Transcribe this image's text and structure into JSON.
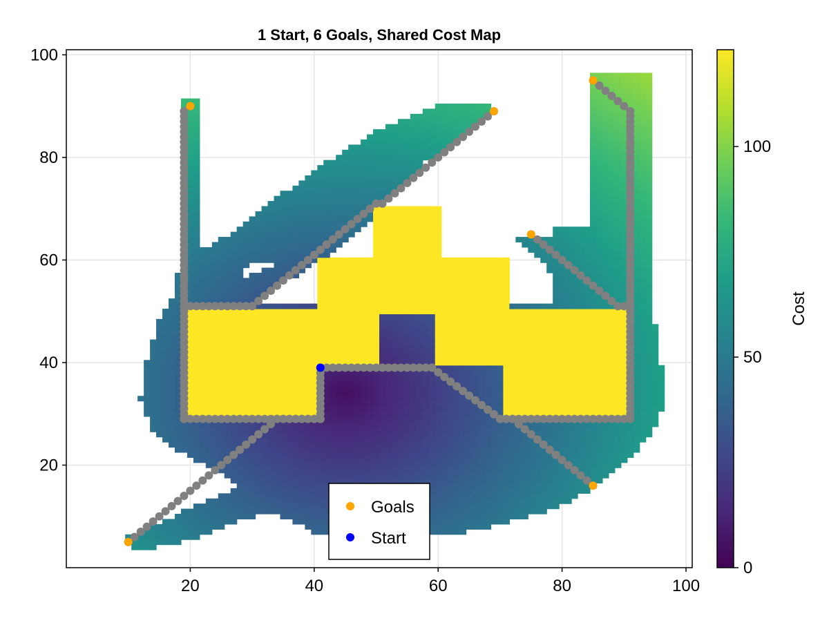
{
  "chart_data": {
    "type": "heatmap",
    "title": "1 Start, 6 Goals, Shared Cost Map",
    "xlabel": "",
    "ylabel": "",
    "xlim": [
      0,
      101
    ],
    "ylim": [
      0,
      101
    ],
    "x_ticks": [
      20,
      40,
      60,
      80,
      100
    ],
    "y_ticks": [
      20,
      40,
      60,
      80,
      100
    ],
    "x_tick_labels": [
      "20",
      "40",
      "60",
      "80",
      "100"
    ],
    "y_tick_labels": [
      "20",
      "40",
      "60",
      "80",
      "100"
    ],
    "grid": true,
    "colorbar": {
      "label": "Cost",
      "range": [
        0,
        123
      ],
      "ticks": [
        0,
        50,
        100
      ],
      "tick_labels": [
        "0",
        "50",
        "100"
      ],
      "colormap": "viridis"
    },
    "cost_field": {
      "obstacle_color": "#fde725",
      "notes_colormap_stops": [
        "#440154",
        "#482878",
        "#3e4989",
        "#31688e",
        "#26828e",
        "#1f9e89",
        "#35b779",
        "#6ece58",
        "#b5de2b",
        "#fde725"
      ]
    },
    "start": {
      "name": "Start",
      "x": 41,
      "y": 39,
      "color": "#0000ff"
    },
    "goals": {
      "name": "Goals",
      "color": "#ffa500",
      "points": [
        [
          10,
          5
        ],
        [
          20,
          90
        ],
        [
          69,
          89
        ],
        [
          85,
          95
        ],
        [
          75,
          65
        ],
        [
          85,
          16
        ]
      ]
    },
    "paths": {
      "color": "#808080",
      "polylines": [
        [
          [
            41,
            39
          ],
          [
            41,
            29
          ],
          [
            34,
            29
          ],
          [
            10,
            5
          ]
        ],
        [
          [
            41,
            29
          ],
          [
            19,
            29
          ],
          [
            19,
            89
          ],
          [
            20,
            90
          ]
        ],
        [
          [
            19,
            51
          ],
          [
            30,
            51
          ],
          [
            50,
            71
          ],
          [
            51,
            71
          ],
          [
            69,
            89
          ]
        ],
        [
          [
            41,
            39
          ],
          [
            59,
            39
          ],
          [
            70,
            29
          ],
          [
            91,
            29
          ],
          [
            91,
            89
          ],
          [
            86,
            94
          ],
          [
            85,
            95
          ]
        ],
        [
          [
            91,
            51
          ],
          [
            89,
            51
          ],
          [
            75,
            65
          ]
        ],
        [
          [
            70,
            29
          ],
          [
            72,
            29
          ],
          [
            85,
            16
          ]
        ]
      ]
    },
    "legend": {
      "placement": "bottom-center",
      "entries": [
        {
          "label": "Goals",
          "color": "#ffa500"
        },
        {
          "label": "Start",
          "color": "#0000ff"
        }
      ]
    }
  }
}
